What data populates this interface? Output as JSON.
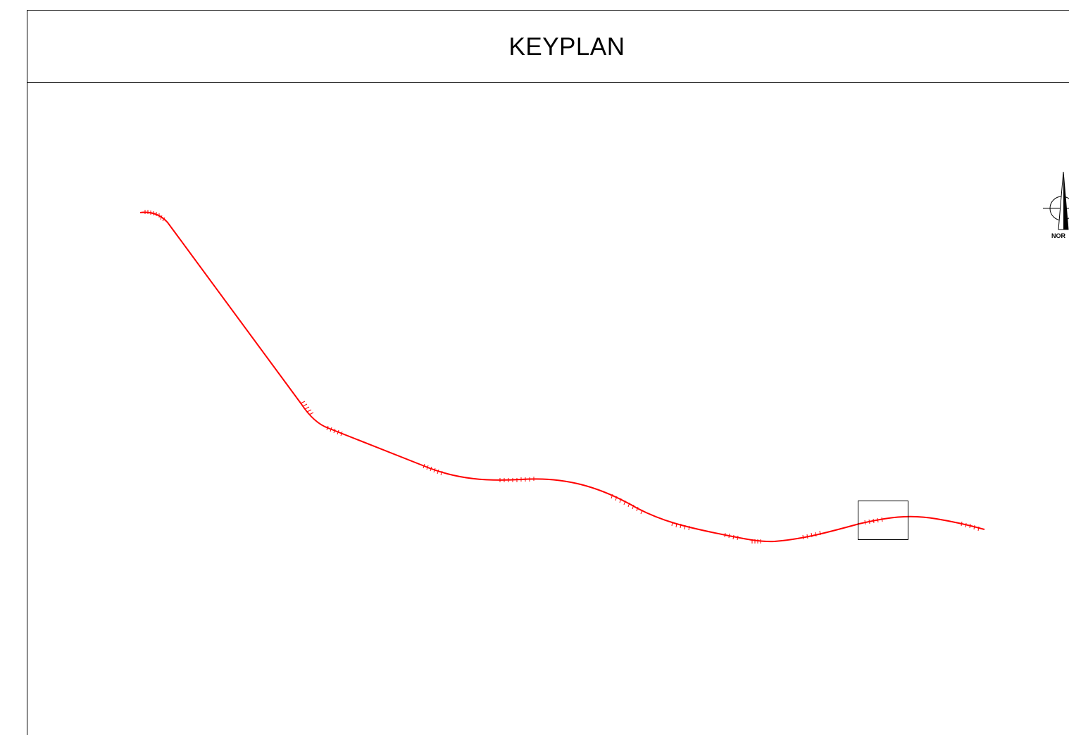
{
  "title": "KEYPLAN",
  "north_arrow": {
    "label": "NOR",
    "icon": "north-arrow-icon"
  },
  "colors": {
    "alignment": "#ff0000",
    "frame": "#000000",
    "background": "#ffffff"
  }
}
